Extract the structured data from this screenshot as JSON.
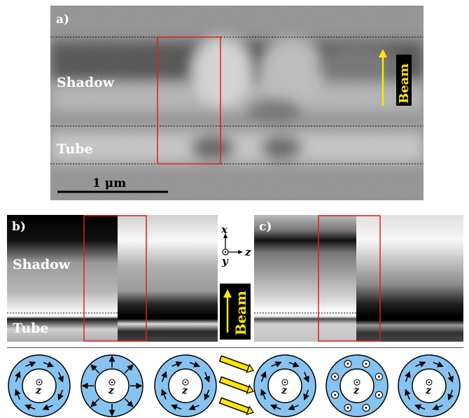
{
  "panel_a": {
    "label": "a)",
    "shadow_label": "Shadow",
    "tube_label": "Tube",
    "scale_bar_label": "1 μm",
    "beam_label": "Beam"
  },
  "panel_b": {
    "label": "b)",
    "shadow_label": "Shadow",
    "tube_label": "Tube"
  },
  "panel_c": {
    "label": "c)"
  },
  "axes": {
    "x": "x",
    "y": "y",
    "z": "z"
  },
  "beam_label_middle": "Beam",
  "rings": {
    "center_label": "z",
    "items": [
      {
        "name": "ring-1",
        "arrow_pattern": "clockwise-circulating"
      },
      {
        "name": "ring-2",
        "arrow_pattern": "radial-outward"
      },
      {
        "name": "ring-3",
        "arrow_pattern": "clockwise-circulating"
      },
      {
        "name": "ring-4",
        "arrow_pattern": "clockwise-circulating"
      },
      {
        "name": "ring-5",
        "arrow_pattern": "out-of-plane-dots"
      },
      {
        "name": "ring-6",
        "arrow_pattern": "clockwise-circulating"
      }
    ]
  },
  "colors": {
    "ring_fill": "#87c3f0",
    "highlight_box": "#e02020",
    "beam_arrow": "#ffe600"
  }
}
